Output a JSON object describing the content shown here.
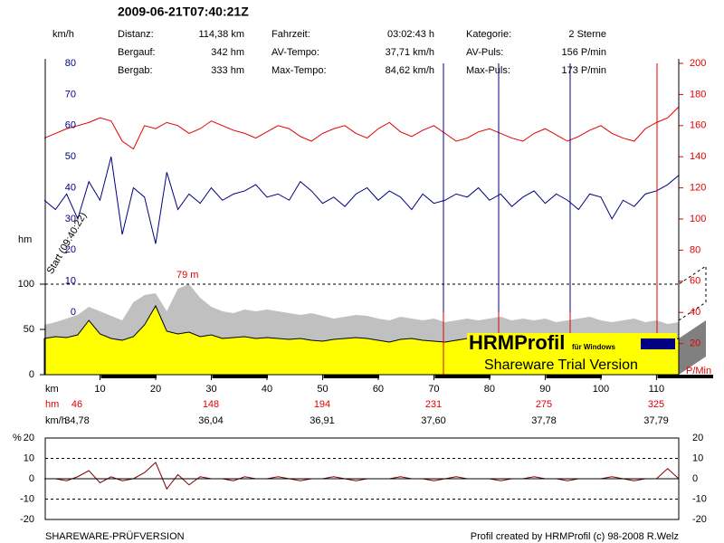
{
  "header": {
    "title": "2009-06-21T07:40:21Z",
    "stats": [
      [
        "Distanz:",
        "114,38 km",
        "Fahrzeit:",
        "03:02:43 h",
        "Kategorie:",
        "2 Sterne"
      ],
      [
        "Bergauf:",
        "342 hm",
        "AV-Tempo:",
        "37,71 km/h",
        "AV-Puls:",
        "156 P/min"
      ],
      [
        "Bergab:",
        "333 hm",
        "Max-Tempo:",
        "84,62 km/h",
        "Max-Puls:",
        "173 P/min"
      ]
    ]
  },
  "chart_data": [
    {
      "type": "line",
      "xlabel": "km",
      "ylabel": "km/h",
      "y2label": "P/Min",
      "x": [
        0,
        2,
        4,
        6,
        8,
        10,
        12,
        14,
        16,
        18,
        20,
        22,
        24,
        26,
        28,
        30,
        32,
        34,
        36,
        38,
        40,
        42,
        44,
        46,
        48,
        50,
        52,
        54,
        56,
        58,
        60,
        62,
        64,
        66,
        68,
        70,
        72,
        74,
        76,
        78,
        80,
        82,
        84,
        86,
        88,
        90,
        92,
        94,
        96,
        98,
        100,
        102,
        104,
        106,
        108,
        110,
        112,
        114
      ],
      "xlim": [
        0,
        114
      ],
      "xticks": [
        10,
        20,
        30,
        40,
        50,
        60,
        70,
        80,
        90,
        100,
        110
      ],
      "ylim": [
        0,
        80
      ],
      "yticks": [
        0,
        10,
        20,
        30,
        40,
        50,
        60,
        70,
        80
      ],
      "y2lim": [
        0,
        200
      ],
      "y2ticks": [
        20,
        40,
        60,
        80,
        100,
        120,
        140,
        160,
        180,
        200
      ],
      "series": [
        {
          "color": "#000080",
          "values": [
            36,
            33,
            38,
            30,
            42,
            36,
            50,
            25,
            40,
            37,
            22,
            45,
            33,
            38,
            35,
            40,
            36,
            38,
            39,
            41,
            37,
            38,
            36,
            42,
            39,
            35,
            37,
            34,
            38,
            40,
            36,
            39,
            37,
            33,
            38,
            35,
            36,
            38,
            37,
            40,
            36,
            38,
            34,
            37,
            39,
            35,
            38,
            36,
            33,
            38,
            37,
            30,
            36,
            34,
            38,
            39,
            41,
            44
          ]
        },
        {
          "color": "#e00000",
          "axis": "y2",
          "values": [
            152,
            155,
            158,
            160,
            162,
            165,
            163,
            150,
            145,
            160,
            158,
            162,
            160,
            155,
            158,
            163,
            160,
            157,
            155,
            152,
            156,
            160,
            158,
            153,
            150,
            155,
            158,
            160,
            155,
            152,
            158,
            162,
            156,
            153,
            157,
            160,
            155,
            150,
            152,
            156,
            158,
            155,
            152,
            150,
            155,
            158,
            154,
            150,
            153,
            157,
            160,
            155,
            152,
            150,
            158,
            162,
            165,
            172
          ]
        }
      ],
      "annotation": "Start (09:40:22)"
    },
    {
      "type": "area",
      "ylabel": "hm",
      "x": [
        0,
        2,
        4,
        6,
        8,
        10,
        12,
        14,
        16,
        18,
        20,
        22,
        24,
        26,
        28,
        30,
        32,
        34,
        36,
        38,
        40,
        42,
        44,
        46,
        48,
        50,
        52,
        54,
        56,
        58,
        60,
        62,
        64,
        66,
        68,
        70,
        72,
        74,
        76,
        78,
        80,
        82,
        84,
        86,
        88,
        90,
        92,
        94,
        96,
        98,
        100,
        102,
        104,
        106,
        108,
        110,
        112,
        114
      ],
      "xlim": [
        0,
        114
      ],
      "ylim": [
        0,
        100
      ],
      "yticks": [
        0,
        50,
        100
      ],
      "series": [
        {
          "color": "#c0c0c0",
          "values": [
            55,
            58,
            62,
            66,
            75,
            70,
            65,
            60,
            80,
            88,
            90,
            70,
            95,
            100,
            85,
            75,
            70,
            68,
            72,
            70,
            72,
            70,
            68,
            66,
            68,
            65,
            62,
            64,
            66,
            65,
            62,
            60,
            64,
            62,
            60,
            62,
            58,
            60,
            62,
            60,
            62,
            64,
            60,
            62,
            60,
            62,
            58,
            60,
            62,
            64,
            60,
            58,
            60,
            62,
            58,
            60,
            56,
            58
          ]
        },
        {
          "color": "#ffff00",
          "values": [
            40,
            42,
            41,
            44,
            60,
            45,
            40,
            38,
            42,
            55,
            76,
            48,
            45,
            47,
            42,
            44,
            40,
            41,
            42,
            40,
            41,
            40,
            39,
            40,
            38,
            37,
            39,
            40,
            41,
            40,
            38,
            36,
            39,
            40,
            38,
            37,
            36,
            38,
            40,
            39,
            37,
            38,
            40,
            39,
            41,
            38,
            36,
            37,
            39,
            40,
            38,
            37,
            36,
            38,
            40,
            39,
            38,
            40
          ]
        }
      ],
      "annotation": "79 m"
    },
    {
      "type": "line",
      "ylabel": "%",
      "x": [
        0,
        2,
        4,
        6,
        8,
        10,
        12,
        14,
        16,
        18,
        20,
        22,
        24,
        26,
        28,
        30,
        32,
        34,
        36,
        38,
        40,
        42,
        44,
        46,
        48,
        50,
        52,
        54,
        56,
        58,
        60,
        62,
        64,
        66,
        68,
        70,
        72,
        74,
        76,
        78,
        80,
        82,
        84,
        86,
        88,
        90,
        92,
        94,
        96,
        98,
        100,
        102,
        104,
        106,
        108,
        110,
        112,
        114
      ],
      "xlim": [
        0,
        114
      ],
      "ylim": [
        -20,
        20
      ],
      "yticks": [
        -20,
        -10,
        0,
        10,
        20
      ],
      "series": [
        {
          "color": "#800000",
          "values": [
            0,
            0,
            -1,
            1,
            4,
            -2,
            1,
            -1,
            0,
            3,
            8,
            -5,
            2,
            -3,
            1,
            0,
            0,
            -1,
            1,
            0,
            0,
            1,
            0,
            -1,
            0,
            0,
            1,
            0,
            -1,
            0,
            0,
            0,
            1,
            0,
            0,
            -1,
            0,
            1,
            0,
            0,
            0,
            -1,
            0,
            0,
            1,
            0,
            0,
            -1,
            0,
            0,
            0,
            1,
            0,
            -1,
            0,
            0,
            5,
            0
          ]
        }
      ]
    }
  ],
  "summary": {
    "hm_label": "hm",
    "hm": [
      "46",
      "148",
      "194",
      "231",
      "275",
      "325"
    ],
    "kmh_label": "km/h",
    "kmh": [
      "34,78",
      "36,04",
      "36,91",
      "37,60",
      "37,78",
      "37,79"
    ]
  },
  "watermark": {
    "logo": "HRMProfil",
    "sub": "für Windows",
    "notice": "Shareware Trial  Version"
  },
  "footer": {
    "left": "SHAREWARE-PRÜFVERSION",
    "right": "Profil created by HRMProfil (c) 98-2008 R.Welz"
  }
}
